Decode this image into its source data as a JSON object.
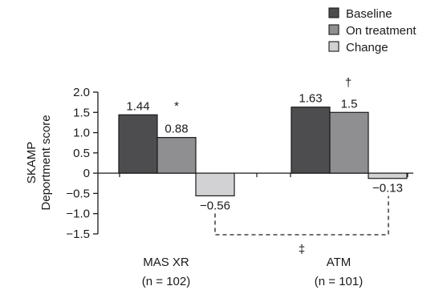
{
  "chart_data": {
    "type": "bar",
    "ylabel_lines": [
      "SKAMP",
      "Deportment score"
    ],
    "ylim": [
      -1.5,
      2.0
    ],
    "yticks": [
      "2.0",
      "1.5",
      "1.0",
      "0.5",
      "0",
      "−0.5",
      "−1.0",
      "−1.5"
    ],
    "ytick_values": [
      2.0,
      1.5,
      1.0,
      0.5,
      0,
      -0.5,
      -1.0,
      -1.5
    ],
    "categories": [
      {
        "name": "MAS XR",
        "n": "(n = 102)"
      },
      {
        "name": "ATM",
        "n": "(n = 101)"
      }
    ],
    "series": [
      {
        "name": "Baseline",
        "color": "#4d4d4f",
        "values": [
          1.44,
          1.63
        ],
        "labels": [
          "1.44",
          "1.63"
        ]
      },
      {
        "name": "On treatment",
        "color": "#8f8f91",
        "values": [
          0.88,
          1.5
        ],
        "labels": [
          "0.88",
          "1.5"
        ]
      },
      {
        "name": "Change",
        "color": "#d2d2d4",
        "values": [
          -0.56,
          -0.13
        ],
        "labels": [
          "−0.56",
          "−0.13"
        ]
      }
    ],
    "annotations": {
      "asterisk": "*",
      "dagger": "†",
      "double_dagger": "‡"
    },
    "legend_position": "top-right",
    "grid": false
  }
}
